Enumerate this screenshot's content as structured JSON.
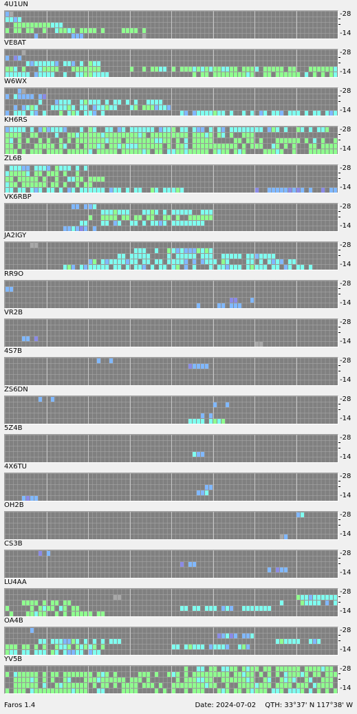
{
  "app_version": "Faros 1.4",
  "status": {
    "date_label": "Date:",
    "date": "2024-07-02",
    "qth_label": "QTH:",
    "qth": "33°37' N  117°38' W"
  },
  "axis": {
    "top": "28",
    "bottom": "14"
  },
  "bands": [
    "14",
    "18",
    "21",
    "24",
    "28"
  ],
  "colors": {
    "background": "#f0f0f0",
    "plot_bg": "#808080",
    "weak": "#8a8ae6",
    "medium": "#80b8ff",
    "strong": "#7ffff0",
    "very_strong": "#8fff8f",
    "noise": "#a8a8a8"
  },
  "beacons": [
    {
      "callsign": "4U1UN",
      "activity": [
        [
          0,
          16,
          3,
          1
        ],
        [
          0,
          7,
          1,
          2
        ],
        [
          0,
          33,
          1,
          1
        ],
        [
          1,
          0,
          34,
          3
        ],
        [
          2,
          0,
          16,
          3
        ],
        [
          3,
          0,
          4,
          2
        ],
        [
          4,
          0,
          2,
          1
        ]
      ]
    },
    {
      "callsign": "VE8AT",
      "activity": [
        [
          0,
          0,
          26,
          2
        ],
        [
          0,
          44,
          36,
          3
        ],
        [
          1,
          0,
          24,
          3
        ],
        [
          1,
          30,
          50,
          3
        ],
        [
          2,
          5,
          20,
          2
        ],
        [
          3,
          0,
          4,
          1
        ],
        [
          4,
          4,
          1,
          1
        ]
      ]
    },
    {
      "callsign": "W6WX",
      "activity": [
        [
          0,
          0,
          24,
          2
        ],
        [
          0,
          40,
          40,
          2
        ],
        [
          1,
          2,
          38,
          2
        ],
        [
          2,
          8,
          30,
          2
        ],
        [
          3,
          0,
          10,
          1
        ],
        [
          4,
          3,
          2,
          1
        ]
      ]
    },
    {
      "callsign": "KH6RS",
      "activity": [
        [
          0,
          0,
          80,
          3
        ],
        [
          1,
          0,
          80,
          3
        ],
        [
          2,
          0,
          80,
          3
        ],
        [
          3,
          0,
          60,
          3
        ],
        [
          4,
          0,
          80,
          2
        ]
      ]
    },
    {
      "callsign": "ZL6B",
      "activity": [
        [
          0,
          0,
          44,
          2
        ],
        [
          0,
          60,
          20,
          1
        ],
        [
          1,
          0,
          22,
          3
        ],
        [
          2,
          0,
          25,
          3
        ],
        [
          3,
          0,
          18,
          3
        ],
        [
          4,
          0,
          20,
          2
        ]
      ]
    },
    {
      "callsign": "VK6RBP",
      "activity": [
        [
          0,
          14,
          8,
          1
        ],
        [
          1,
          18,
          30,
          2
        ],
        [
          2,
          20,
          30,
          3
        ],
        [
          3,
          22,
          28,
          2
        ],
        [
          4,
          16,
          6,
          1
        ]
      ]
    },
    {
      "callsign": "JA2IGY",
      "activity": [
        [
          0,
          14,
          60,
          2
        ],
        [
          1,
          20,
          50,
          2
        ],
        [
          2,
          26,
          40,
          2
        ],
        [
          3,
          30,
          20,
          2
        ],
        [
          4,
          6,
          2,
          1
        ]
      ]
    },
    {
      "callsign": "RR9O",
      "activity": [
        [
          0,
          46,
          12,
          1
        ],
        [
          1,
          54,
          6,
          1
        ],
        [
          3,
          0,
          2,
          1
        ]
      ]
    },
    {
      "callsign": "VR2B",
      "activity": [
        [
          1,
          4,
          4,
          1
        ],
        [
          0,
          60,
          2,
          1
        ]
      ]
    },
    {
      "callsign": "4S7B",
      "activity": [
        [
          3,
          44,
          6,
          1
        ],
        [
          4,
          22,
          4,
          1
        ]
      ]
    },
    {
      "callsign": "ZS6DN",
      "activity": [
        [
          0,
          44,
          10,
          2
        ],
        [
          1,
          46,
          6,
          1
        ],
        [
          3,
          50,
          4,
          1
        ],
        [
          4,
          8,
          4,
          1
        ]
      ]
    },
    {
      "callsign": "5Z4B",
      "activity": [
        [
          1,
          44,
          4,
          1
        ]
      ]
    },
    {
      "callsign": "4X6TU",
      "activity": [
        [
          0,
          3,
          5,
          1
        ],
        [
          1,
          46,
          3,
          1
        ],
        [
          2,
          48,
          2,
          1
        ]
      ]
    },
    {
      "callsign": "OH2B",
      "activity": [
        [
          0,
          66,
          2,
          1
        ],
        [
          4,
          70,
          2,
          1
        ]
      ]
    },
    {
      "callsign": "CS3B",
      "activity": [
        [
          1,
          62,
          6,
          1
        ],
        [
          2,
          42,
          4,
          1
        ],
        [
          4,
          8,
          4,
          1
        ]
      ]
    },
    {
      "callsign": "LU4AA",
      "activity": [
        [
          0,
          0,
          24,
          3
        ],
        [
          1,
          0,
          18,
          3
        ],
        [
          1,
          42,
          22,
          2
        ],
        [
          2,
          4,
          12,
          3
        ],
        [
          2,
          66,
          14,
          2
        ],
        [
          3,
          26,
          2,
          1
        ],
        [
          3,
          70,
          10,
          2
        ]
      ]
    },
    {
      "callsign": "OA4B",
      "activity": [
        [
          0,
          0,
          24,
          2
        ],
        [
          1,
          0,
          24,
          3
        ],
        [
          1,
          40,
          20,
          2
        ],
        [
          2,
          8,
          20,
          2
        ],
        [
          2,
          64,
          14,
          2
        ],
        [
          3,
          50,
          10,
          1
        ],
        [
          4,
          4,
          4,
          1
        ]
      ]
    },
    {
      "callsign": "YV5B",
      "activity": [
        [
          0,
          0,
          80,
          3
        ],
        [
          1,
          0,
          80,
          3
        ],
        [
          2,
          0,
          80,
          3
        ],
        [
          3,
          0,
          80,
          3
        ],
        [
          4,
          42,
          38,
          3
        ]
      ]
    }
  ]
}
